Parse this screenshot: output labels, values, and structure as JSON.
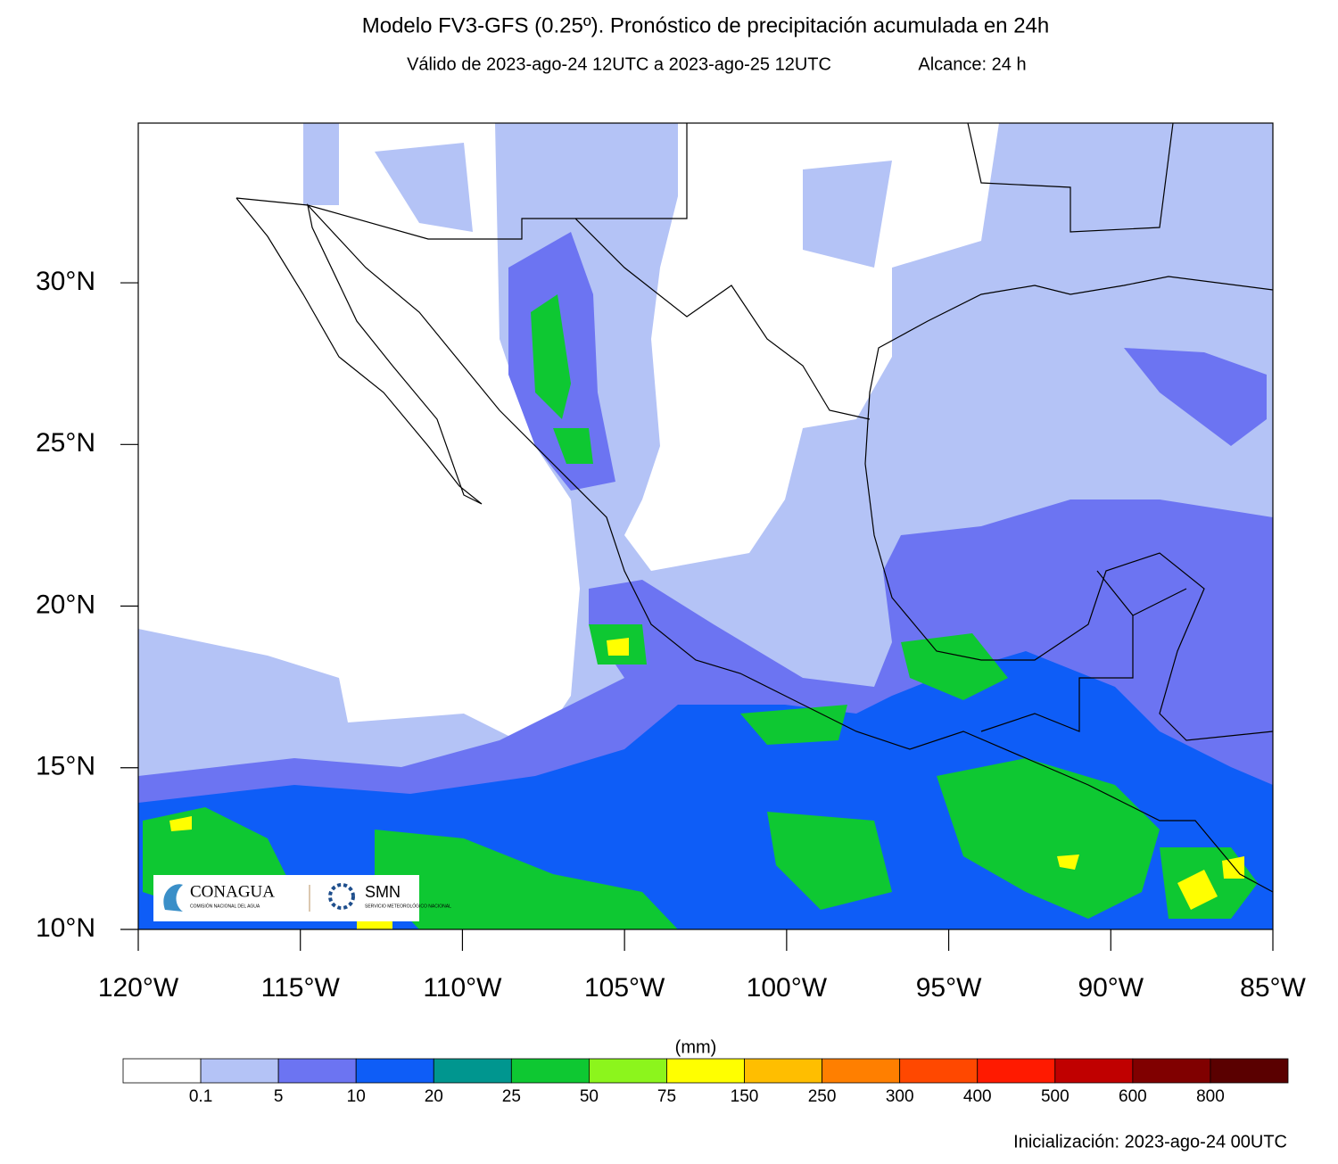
{
  "map": {
    "title": "Modelo FV3-GFS (0.25º). Pronóstico de precipitación acumulada en 24h",
    "valid": "Válido de 2023-ago-24 12UTC a 2023-ago-25 12UTC",
    "lead": "Alcance: 24 h",
    "latlim": [
      10,
      34.94
    ],
    "lonlim": [
      -120,
      -85
    ],
    "lat_ticks": [
      {
        "value": 10,
        "label": "10°N"
      },
      {
        "value": 15,
        "label": "15°N"
      },
      {
        "value": 20,
        "label": "20°N"
      },
      {
        "value": 25,
        "label": "25°N"
      },
      {
        "value": 30,
        "label": "30°N"
      }
    ],
    "lon_ticks": [
      {
        "value": -120,
        "label": "120°W"
      },
      {
        "value": -115,
        "label": "115°W"
      },
      {
        "value": -110,
        "label": "110°W"
      },
      {
        "value": -105,
        "label": "105°W"
      },
      {
        "value": -100,
        "label": "100°W"
      },
      {
        "value": -95,
        "label": "95°W"
      },
      {
        "value": -90,
        "label": "90°W"
      },
      {
        "value": -85,
        "label": "85°W"
      }
    ],
    "colorbar": {
      "unit": "(mm)",
      "levels": [
        0.1,
        5,
        10,
        20,
        25,
        50,
        75,
        150,
        250,
        300,
        400,
        500,
        600,
        800
      ],
      "colors": [
        "#ffffff",
        "#b4c3f6",
        "#6c74f2",
        "#0e5df7",
        "#00968f",
        "#0ec832",
        "#8cf51c",
        "#ffff00",
        "#ffbe00",
        "#ff7f00",
        "#ff4800",
        "#ff1a00",
        "#c00000",
        "#800000",
        "#5a0000"
      ]
    },
    "logos": {
      "conagua": "CONAGUA",
      "conagua_sub": "COMISIÓN NACIONAL DEL AGUA",
      "smn": "SMN",
      "smn_sub": "SERVICIO METEOROLÓGICO NACIONAL"
    },
    "init": "Inicialización: 2023-ago-24 00UTC"
  }
}
